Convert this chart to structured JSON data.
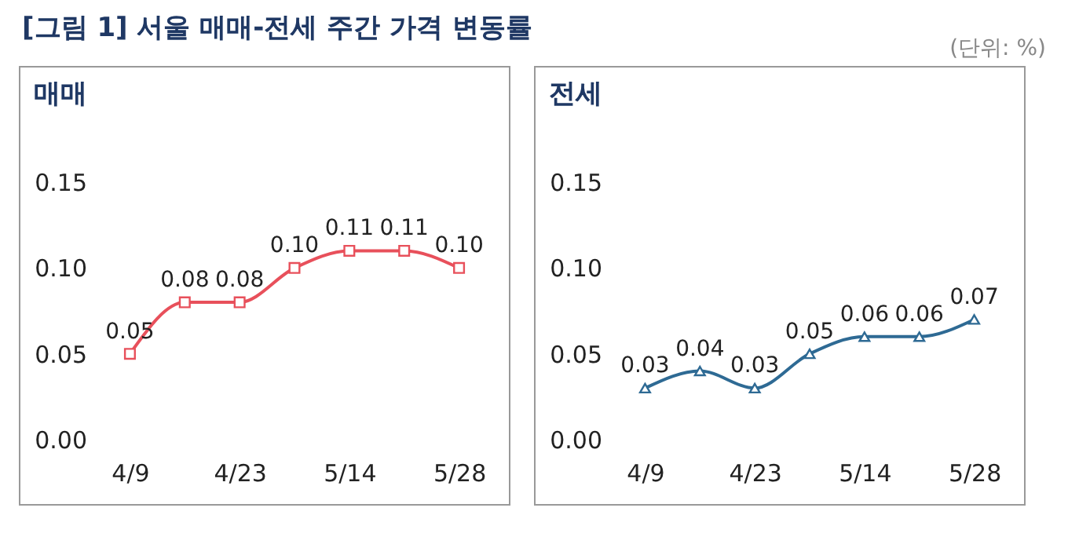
{
  "chart_data": [
    {
      "type": "line",
      "title": "매매",
      "annotations": [
        "[그림 1] 서울 매매-전세 주간 가격 변동률",
        "(단위: %)"
      ],
      "categories": [
        "4/9",
        null,
        "4/23",
        null,
        "5/14",
        null,
        "5/28"
      ],
      "series": [
        {
          "color": "#e8505b",
          "values": [
            0.05,
            0.08,
            0.08,
            0.1,
            0.11,
            0.11,
            0.1
          ],
          "value_labels": [
            "0.05",
            "0.08",
            "0.08",
            "0.10",
            "0.11",
            "0.11",
            "0.10"
          ]
        }
      ],
      "ylim": [
        0,
        0.15
      ],
      "yticks": [
        {
          "value": 0,
          "label": "0.00"
        },
        {
          "value": 0.05,
          "label": "0.05"
        },
        {
          "value": 0.1,
          "label": "0.10"
        },
        {
          "value": 0.15,
          "label": "0.15"
        }
      ],
      "grid": false,
      "marker": "square"
    },
    {
      "type": "line",
      "title": "전세",
      "categories": [
        "4/9",
        null,
        "4/23",
        null,
        "5/14",
        null,
        "5/28"
      ],
      "series": [
        {
          "color": "#2e6a94",
          "values": [
            0.03,
            0.04,
            0.03,
            0.05,
            0.06,
            0.06,
            0.07
          ],
          "value_labels": [
            "0.03",
            "0.04",
            "0.03",
            "0.05",
            "0.06",
            "0.06",
            "0.07"
          ]
        }
      ],
      "ylim": [
        0,
        0.15
      ],
      "yticks": [
        {
          "value": 0,
          "label": "0.00"
        },
        {
          "value": 0.05,
          "label": "0.05"
        },
        {
          "value": 0.1,
          "label": "0.10"
        },
        {
          "value": 0.15,
          "label": "0.15"
        }
      ],
      "grid": false,
      "marker": "triangle"
    }
  ]
}
